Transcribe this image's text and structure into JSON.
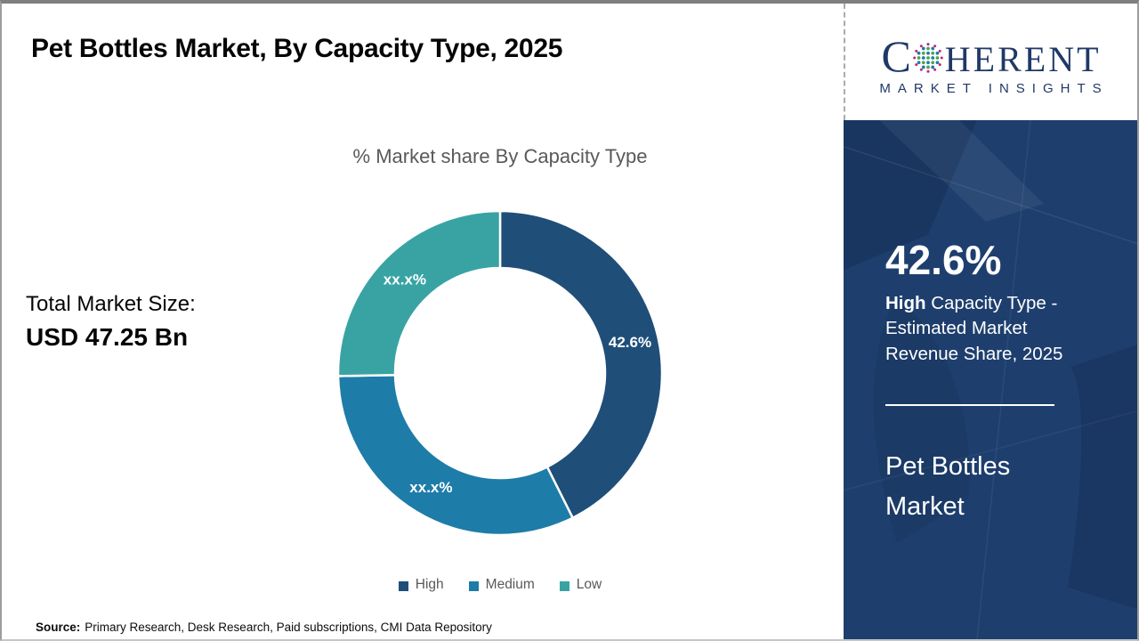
{
  "page": {
    "title": "Pet Bottles Market, By Capacity Type, 2025",
    "source_label": "Source:",
    "source_text": "Primary Research, Desk Research, Paid subscriptions, CMI Data Repository"
  },
  "logo": {
    "brand_prefix": "C",
    "brand_suffix": "HERENT",
    "tagline": "MARKET INSIGHTS"
  },
  "left_panel": {
    "total_label": "Total Market Size:",
    "total_value": "USD 47.25 Bn"
  },
  "sidebar": {
    "stat_value": "42.6%",
    "stat_bold": "High",
    "stat_rest": " Capacity Type - Estimated Market Revenue Share, 2025",
    "product_title": "Pet Bottles Market"
  },
  "chart_data": {
    "type": "pie",
    "donut": true,
    "title": "% Market share By Capacity Type",
    "categories": [
      "High",
      "Medium",
      "Low"
    ],
    "values": [
      42.6,
      32.1,
      25.3
    ],
    "slice_labels": [
      "42.6%",
      "xx.x%",
      "xx.x%"
    ],
    "colors": [
      "#1F4E79",
      "#1E7CA8",
      "#39A3A4"
    ],
    "legend_position": "bottom"
  }
}
